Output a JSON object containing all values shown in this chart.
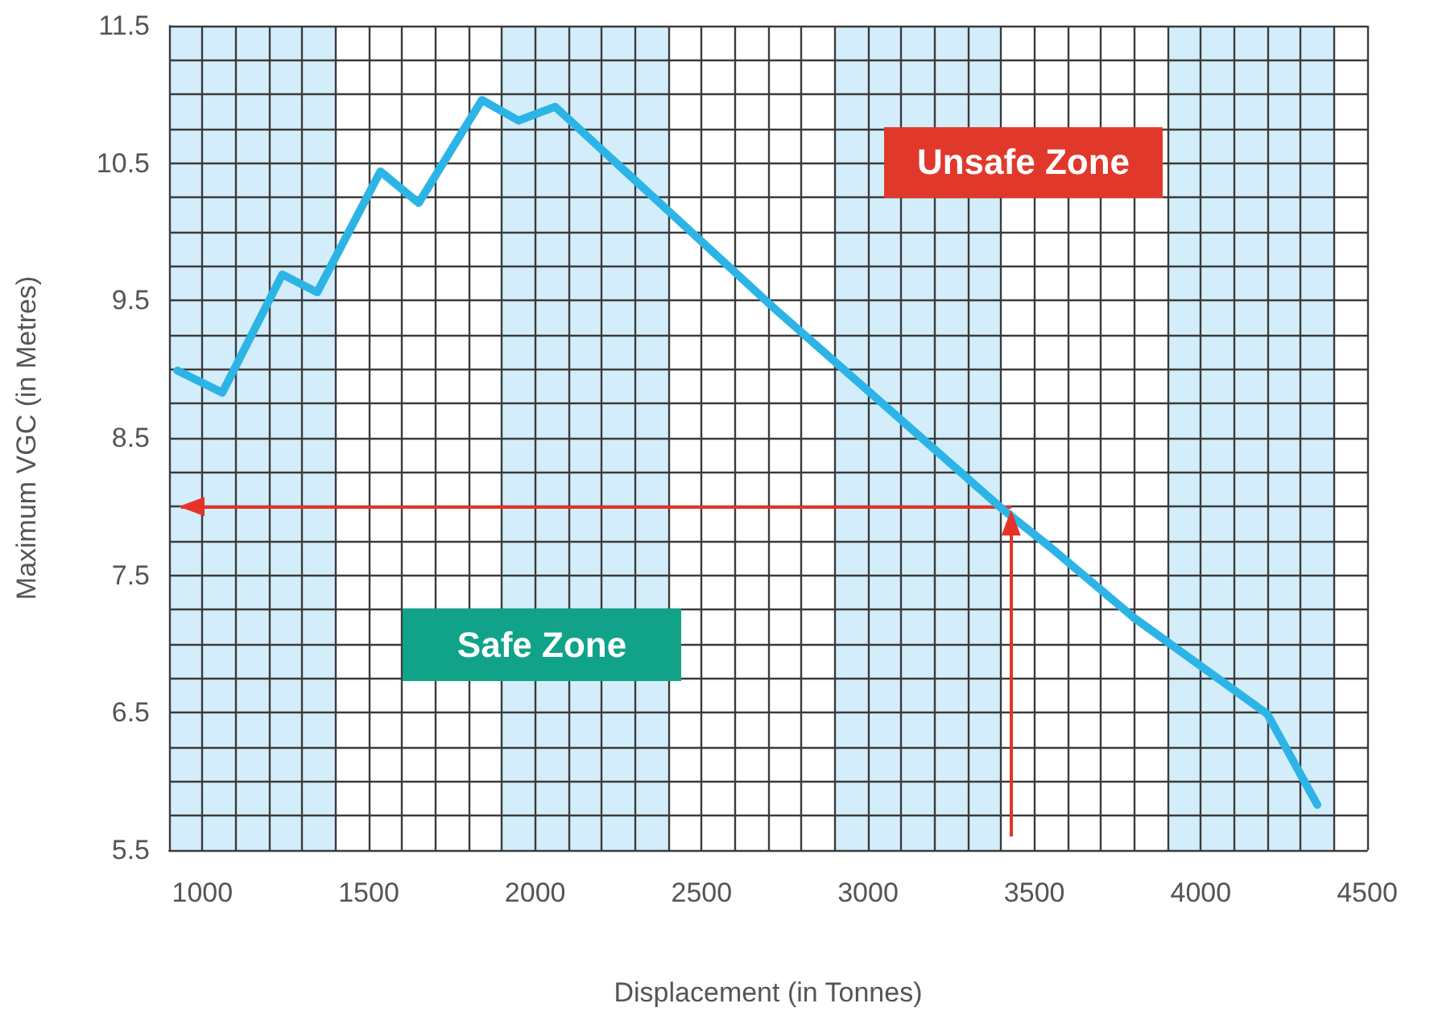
{
  "chart_data": {
    "type": "line",
    "xlabel": "Displacement (in Tonnes)",
    "ylabel": "Maximum VGC (in Metres)",
    "annotations": [
      "Unsafe Zone",
      "Safe Zone"
    ],
    "x": [
      925,
      1060,
      1240,
      1345,
      1535,
      1650,
      1840,
      1950,
      2060,
      2720,
      3410,
      3550,
      3800,
      4200,
      4350
    ],
    "series": [
      {
        "color": "#2db4e6",
        "values": [
          8.99,
          8.83,
          9.69,
          9.56,
          10.44,
          10.21,
          10.96,
          10.81,
          10.91,
          9.44,
          7.97,
          7.7,
          7.19,
          6.49,
          5.83
        ]
      }
    ],
    "xlim": [
      900,
      4500
    ],
    "xticks": [
      1000,
      1500,
      2000,
      2500,
      3000,
      3500,
      4000,
      4500
    ],
    "ylim": [
      5.5,
      11.5
    ],
    "yticks": [
      5.5,
      6.5,
      7.5,
      8.5,
      9.5,
      10.5,
      11.5
    ],
    "grid": true,
    "line_style": "solid",
    "marker": "none",
    "bands": [
      {
        "axis": "x",
        "from": 900,
        "to": 1400,
        "color": "#d3eefa"
      },
      {
        "axis": "x",
        "from": 1900,
        "to": 2400,
        "color": "#d3eefa"
      },
      {
        "axis": "x",
        "from": 2900,
        "to": 3400,
        "color": "#d3eefa"
      },
      {
        "axis": "x",
        "from": 3900,
        "to": 4400,
        "color": "#d3eefa"
      }
    ],
    "ref_lines": [
      {
        "axis": "y",
        "value": 8,
        "color": "#e5332a"
      },
      {
        "axis": "x",
        "value": 3430,
        "color": "#e5332a"
      }
    ]
  }
}
